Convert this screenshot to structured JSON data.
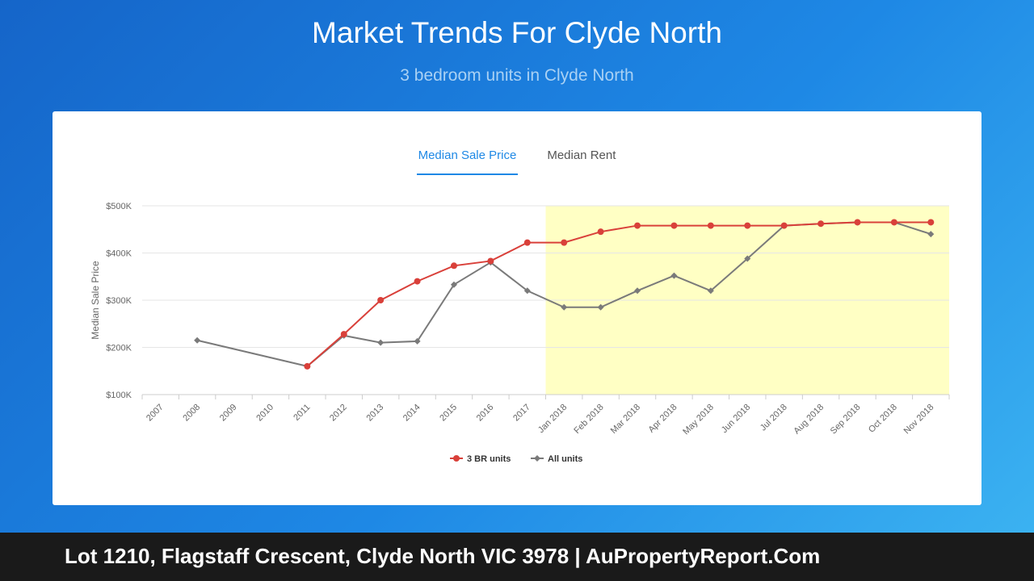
{
  "header": {
    "title": "Market Trends For Clyde North",
    "subtitle": "3 bedroom units in Clyde North"
  },
  "tabs": [
    {
      "label": "Median Sale Price",
      "active": true
    },
    {
      "label": "Median Rent",
      "active": false
    }
  ],
  "chart_data": {
    "type": "line",
    "ylabel": "Median Sale Price",
    "ylim": [
      100000,
      500000
    ],
    "yticks": [
      {
        "value": 100000,
        "label": "$100K"
      },
      {
        "value": 200000,
        "label": "$200K"
      },
      {
        "value": 300000,
        "label": "$300K"
      },
      {
        "value": 400000,
        "label": "$400K"
      },
      {
        "value": 500000,
        "label": "$500K"
      }
    ],
    "categories": [
      "2007",
      "2008",
      "2009",
      "2010",
      "2011",
      "2012",
      "2013",
      "2014",
      "2015",
      "2016",
      "2017",
      "Jan 2018",
      "Feb 2018",
      "Mar 2018",
      "Apr 2018",
      "May 2018",
      "Jun 2018",
      "Jul 2018",
      "Aug 2018",
      "Sep 2018",
      "Oct 2018",
      "Nov 2018"
    ],
    "highlight_range": [
      "Jan 2018",
      "Nov 2018"
    ],
    "highlight_color": "#ffffc4",
    "grid": true,
    "legend_position": "bottom-center",
    "series": [
      {
        "name": "3 BR units",
        "color": "#d9403a",
        "marker": "circle",
        "values": [
          null,
          null,
          null,
          null,
          160000,
          228000,
          300000,
          340000,
          373000,
          383000,
          422000,
          422000,
          445000,
          458000,
          458000,
          458000,
          458000,
          458000,
          462000,
          465000,
          465000,
          465000
        ]
      },
      {
        "name": "All units",
        "color": "#7a7a7a",
        "marker": "diamond",
        "values": [
          null,
          215000,
          null,
          null,
          160000,
          225000,
          210000,
          213000,
          333000,
          380000,
          320000,
          285000,
          285000,
          320000,
          352000,
          320000,
          388000,
          458000,
          462000,
          465000,
          465000,
          440000
        ]
      }
    ]
  },
  "footer": {
    "text": "Lot 1210, Flagstaff Crescent, Clyde North VIC 3978 | AuPropertyReport.Com"
  }
}
